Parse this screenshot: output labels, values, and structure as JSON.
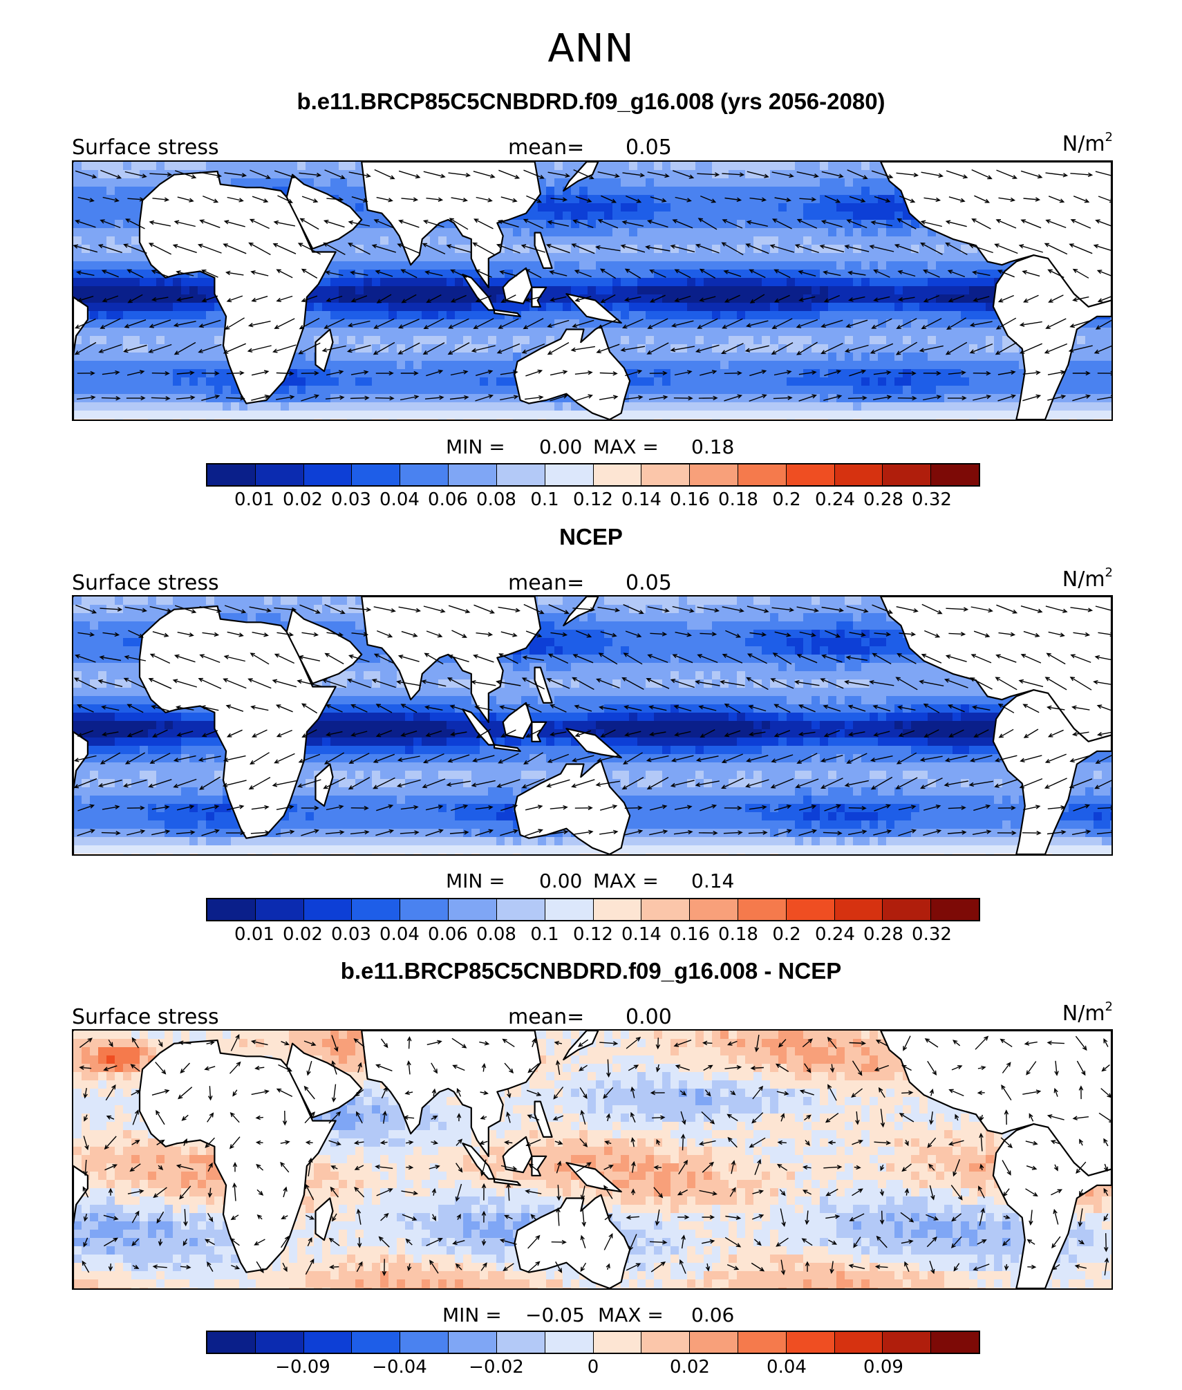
{
  "figure": {
    "title": "ANN"
  },
  "colormap_colors": [
    "#0a1f8a",
    "#0b2bb0",
    "#0d3fd6",
    "#1e5ee8",
    "#4a82f0",
    "#7fa6f5",
    "#b3c9f7",
    "#dce7fb",
    "#fde5d3",
    "#fbc6aa",
    "#f8a07a",
    "#f57a4c",
    "#ef4e22",
    "#d63210",
    "#b01e0c",
    "#7d0a06"
  ],
  "land_color": "#ffffff",
  "panels": [
    {
      "title": "b.e11.BRCP85C5CNBDRD.f09_g16.008 (yrs 2056-2080)",
      "field_label": "Surface stress",
      "mean_label": "mean=",
      "mean_value": "0.05",
      "units": "N/m",
      "units_exp": "2",
      "min_label": "MIN =",
      "min_value": "0.00",
      "max_label": "MAX =",
      "max_value": "0.18",
      "kind": "abs",
      "colorbar_ticks": [
        "0.01",
        "0.02",
        "0.03",
        "0.04",
        "0.06",
        "0.08",
        "0.1",
        "0.12",
        "0.14",
        "0.16",
        "0.18",
        "0.2",
        "0.24",
        "0.28",
        "0.32"
      ]
    },
    {
      "title": "NCEP",
      "field_label": "Surface stress",
      "mean_label": "mean=",
      "mean_value": "0.05",
      "units": "N/m",
      "units_exp": "2",
      "min_label": "MIN =",
      "min_value": "0.00",
      "max_label": "MAX =",
      "max_value": "0.14",
      "kind": "abs",
      "colorbar_ticks": [
        "0.01",
        "0.02",
        "0.03",
        "0.04",
        "0.06",
        "0.08",
        "0.1",
        "0.12",
        "0.14",
        "0.16",
        "0.18",
        "0.2",
        "0.24",
        "0.28",
        "0.32"
      ]
    },
    {
      "title": "b.e11.BRCP85C5CNBDRD.f09_g16.008 - NCEP",
      "field_label": "Surface stress",
      "mean_label": "mean=",
      "mean_value": "0.00",
      "units": "N/m",
      "units_exp": "2",
      "min_label": "MIN =",
      "min_value": "−0.05",
      "max_label": "MAX =",
      "max_value": "0.06",
      "kind": "diff",
      "colorbar_ticks": [
        "−0.09",
        "−0.04",
        "−0.02",
        "0",
        "0.02",
        "0.04",
        "0.09"
      ]
    }
  ]
}
